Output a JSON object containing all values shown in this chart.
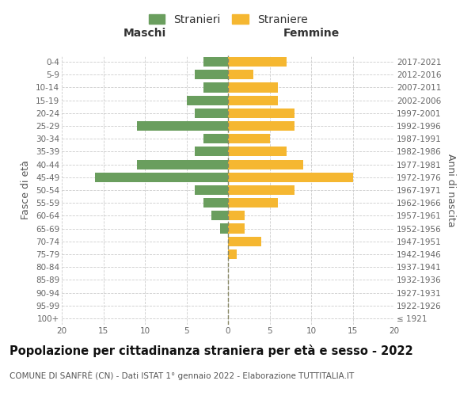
{
  "age_groups": [
    "100+",
    "95-99",
    "90-94",
    "85-89",
    "80-84",
    "75-79",
    "70-74",
    "65-69",
    "60-64",
    "55-59",
    "50-54",
    "45-49",
    "40-44",
    "35-39",
    "30-34",
    "25-29",
    "20-24",
    "15-19",
    "10-14",
    "5-9",
    "0-4"
  ],
  "birth_years": [
    "≤ 1921",
    "1922-1926",
    "1927-1931",
    "1932-1936",
    "1937-1941",
    "1942-1946",
    "1947-1951",
    "1952-1956",
    "1957-1961",
    "1962-1966",
    "1967-1971",
    "1972-1976",
    "1977-1981",
    "1982-1986",
    "1987-1991",
    "1992-1996",
    "1997-2001",
    "2002-2006",
    "2007-2011",
    "2012-2016",
    "2017-2021"
  ],
  "maschi": [
    0,
    0,
    0,
    0,
    0,
    0,
    0,
    1,
    2,
    3,
    4,
    16,
    11,
    4,
    3,
    11,
    4,
    5,
    3,
    4,
    3
  ],
  "femmine": [
    0,
    0,
    0,
    0,
    0,
    1,
    4,
    2,
    2,
    6,
    8,
    15,
    9,
    7,
    5,
    8,
    8,
    6,
    6,
    3,
    7
  ],
  "maschi_color": "#6a9e5e",
  "femmine_color": "#f5b731",
  "background_color": "#ffffff",
  "grid_color": "#cccccc",
  "title": "Popolazione per cittadinanza straniera per età e sesso - 2022",
  "subtitle": "COMUNE DI SANFRÈ (CN) - Dati ISTAT 1° gennaio 2022 - Elaborazione TUTTITALIA.IT",
  "ylabel_left": "Fasce di età",
  "ylabel_right": "Anni di nascita",
  "xlabel_left": "Maschi",
  "xlabel_right": "Femmine",
  "legend_maschi": "Stranieri",
  "legend_femmine": "Straniere",
  "xlim": 20,
  "title_fontsize": 10.5,
  "subtitle_fontsize": 7.5,
  "tick_fontsize": 7.5,
  "label_fontsize": 9
}
